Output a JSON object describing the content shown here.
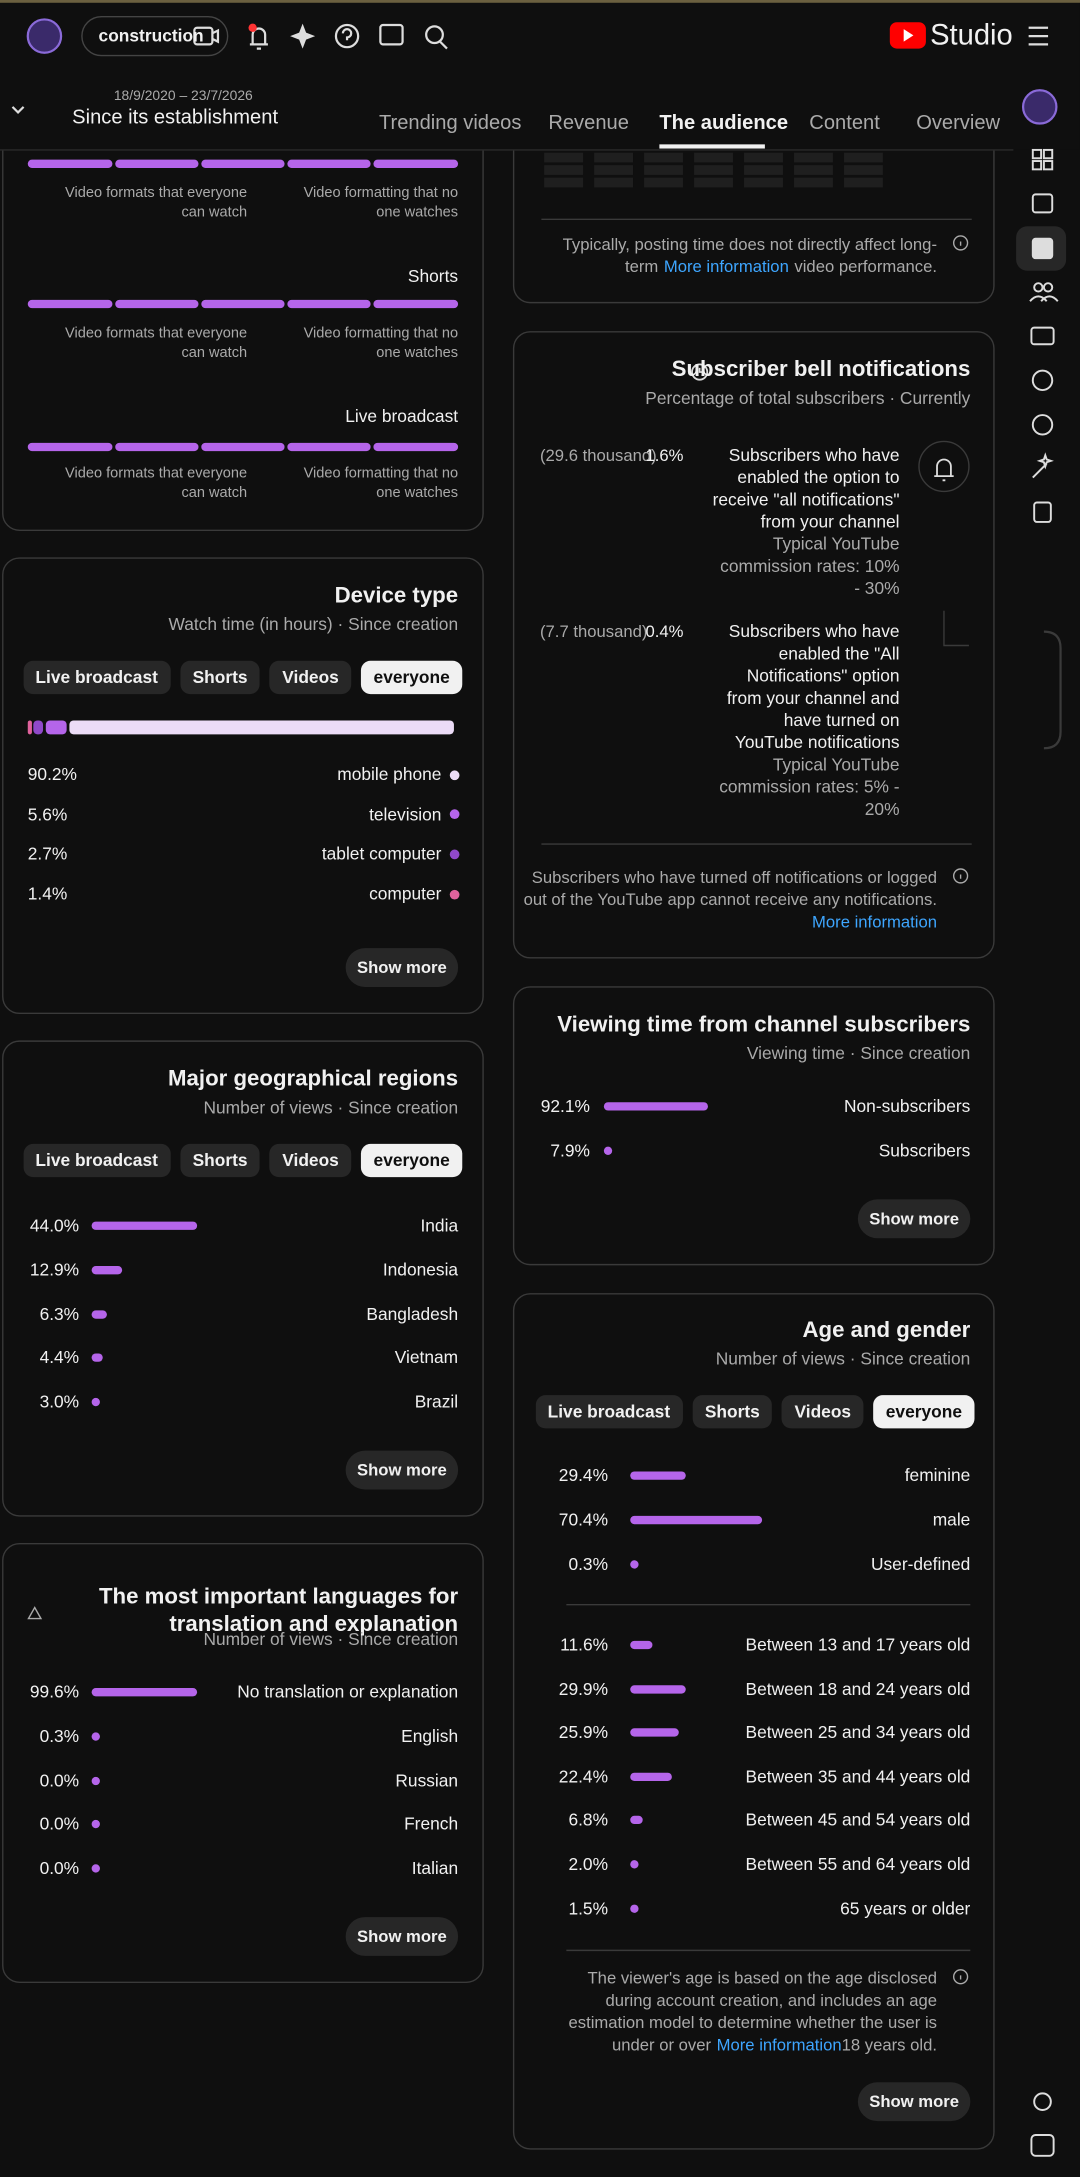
{
  "header": {
    "channel": "construction",
    "studio": "Studio"
  },
  "date_range": {
    "dates": "18/9/2020 – 23/7/2026",
    "period": "Since its establishment"
  },
  "tabs": [
    "Trending videos",
    "Revenue",
    "The audience",
    "Content",
    "Overview"
  ],
  "formats": {
    "rows": [
      {
        "captions": [
          "Video formats that everyone can watch",
          "Video formatting that no one watches"
        ]
      },
      {
        "label": "Shorts",
        "captions": [
          "Video formats that everyone can watch",
          "Video formatting that no one watches"
        ]
      },
      {
        "label": "Live broadcast",
        "captions": [
          "Video formats that everyone can watch",
          "Video formatting that no one watches"
        ]
      }
    ]
  },
  "device_type": {
    "title": "Device type",
    "subtitle": "Watch time (in hours) · Since creation",
    "filters": [
      "Live broadcast",
      "Shorts",
      "Videos",
      "everyone"
    ],
    "rows": [
      {
        "value": 90.2,
        "label": "90.2%",
        "name": "mobile phone",
        "color": "#ecdcf7"
      },
      {
        "value": 5.6,
        "label": "5.6%",
        "name": "television",
        "color": "#b565ea"
      },
      {
        "value": 2.7,
        "label": "2.7%",
        "name": "tablet computer",
        "color": "#9049c9"
      },
      {
        "value": 1.4,
        "label": "1.4%",
        "name": "computer",
        "color": "#e0629c"
      }
    ],
    "button": "Show more"
  },
  "regions": {
    "title": "Major geographical regions",
    "subtitle": "Number of views · Since creation",
    "filters": [
      "Live broadcast",
      "Shorts",
      "Videos",
      "everyone"
    ],
    "rows": [
      {
        "value": 44.0,
        "label": "44.0%",
        "name": "India"
      },
      {
        "value": 12.9,
        "label": "12.9%",
        "name": "Indonesia"
      },
      {
        "value": 6.3,
        "label": "6.3%",
        "name": "Bangladesh"
      },
      {
        "value": 4.4,
        "label": "4.4%",
        "name": "Vietnam"
      },
      {
        "value": 3.0,
        "label": "3.0%",
        "name": "Brazil"
      }
    ],
    "button": "Show more"
  },
  "languages": {
    "title": "The most important languages for translation and explanation",
    "subtitle": "Number of views · Since creation",
    "rows": [
      {
        "value": 99.6,
        "label": "99.6%",
        "name": "No translation or explanation"
      },
      {
        "value": 0.3,
        "label": "0.3%",
        "name": "English"
      },
      {
        "value": 0.0,
        "label": "0.0%",
        "name": "Russian"
      },
      {
        "value": 0.0,
        "label": "0.0%",
        "name": "French"
      },
      {
        "value": 0.0,
        "label": "0.0%",
        "name": "Italian"
      }
    ],
    "button": "Show more"
  },
  "posting_time": {
    "note": "Typically, posting time does not directly affect long-term",
    "link": "More information",
    "note_end": "video performance."
  },
  "bell": {
    "title": "Subscriber bell notifications",
    "subtitle": "Percentage of total subscribers · Currently",
    "items": [
      {
        "count": "(29.6 thousand)",
        "value": 1.6,
        "label": "1.6%",
        "text": "Subscribers who have enabled the option to receive \"all notifications\" from your channel",
        "rate": "Typical YouTube commission rates: 10% - 30%"
      },
      {
        "count": "(7.7 thousand)",
        "value": 0.4,
        "label": "0.4%",
        "text": "Subscribers who have enabled the \"All Notifications\" option from your channel and have turned on YouTube notifications",
        "rate": "Typical YouTube commission rates: 5% - 20%"
      }
    ],
    "note": "Subscribers who have turned off notifications or logged out of the YouTube app cannot receive any notifications.",
    "link": "More information"
  },
  "subscriber_time": {
    "title": "Viewing time from channel subscribers",
    "subtitle": "Viewing time · Since creation",
    "rows": [
      {
        "value": 92.1,
        "label": "92.1%",
        "name": "Non-subscribers"
      },
      {
        "value": 7.9,
        "label": "7.9%",
        "name": "Subscribers"
      }
    ],
    "button": "Show more"
  },
  "age_gender": {
    "title": "Age and gender",
    "subtitle": "Number of views · Since creation",
    "filters": [
      "Live broadcast",
      "Shorts",
      "Videos",
      "everyone"
    ],
    "gender": [
      {
        "value": 29.4,
        "label": "29.4%",
        "name": "feminine"
      },
      {
        "value": 70.4,
        "label": "70.4%",
        "name": "male"
      },
      {
        "value": 0.3,
        "label": "0.3%",
        "name": "User-defined"
      }
    ],
    "age": [
      {
        "value": 11.6,
        "label": "11.6%",
        "name": "Between 13 and 17 years old"
      },
      {
        "value": 29.9,
        "label": "29.9%",
        "name": "Between 18 and 24 years old"
      },
      {
        "value": 25.9,
        "label": "25.9%",
        "name": "Between 25 and 34 years old"
      },
      {
        "value": 22.4,
        "label": "22.4%",
        "name": "Between 35 and 44 years old"
      },
      {
        "value": 6.8,
        "label": "6.8%",
        "name": "Between 45 and 54 years old"
      },
      {
        "value": 2.0,
        "label": "2.0%",
        "name": "Between 55 and 64 years old"
      },
      {
        "value": 1.5,
        "label": "1.5%",
        "name": "65 years or older"
      }
    ],
    "note": "The viewer's age is based on the age disclosed during account creation, and includes an age estimation model to determine whether the user is under or over",
    "link": "More information",
    "note_end": "18 years old.",
    "button": "Show more"
  }
}
